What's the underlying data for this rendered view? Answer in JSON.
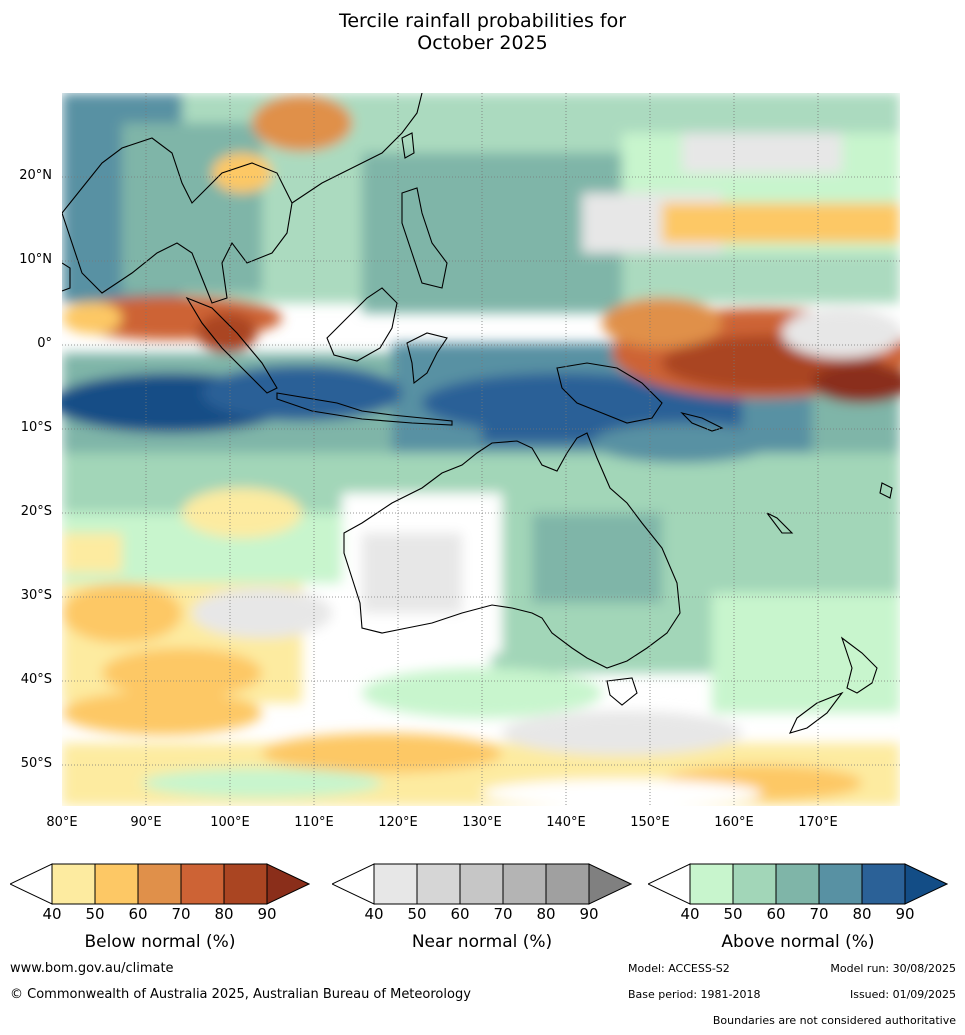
{
  "title": {
    "line1": "Tercile rainfall probabilities for",
    "line2": "October 2025"
  },
  "axes": {
    "lat_labels": [
      "20°N",
      "10°N",
      "0°",
      "10°S",
      "20°S",
      "30°S",
      "40°S",
      "50°S"
    ],
    "lon_labels": [
      "80°E",
      "90°E",
      "100°E",
      "110°E",
      "120°E",
      "130°E",
      "140°E",
      "150°E",
      "160°E",
      "170°E"
    ]
  },
  "colorbars": [
    {
      "title": "Below normal (%)",
      "ticks": [
        "40",
        "50",
        "60",
        "70",
        "80",
        "90"
      ],
      "colors": [
        "#ffffff",
        "#fdeba0",
        "#fdc865",
        "#e0904a",
        "#cd6335",
        "#aa4522",
        "#8a2e1a"
      ]
    },
    {
      "title": "Near normal (%)",
      "ticks": [
        "40",
        "50",
        "60",
        "70",
        "80",
        "90"
      ],
      "colors": [
        "#ffffff",
        "#e7e7e7",
        "#d6d6d6",
        "#c6c6c6",
        "#b4b4b4",
        "#a0a0a0",
        "#808080"
      ]
    },
    {
      "title": "Above normal (%)",
      "ticks": [
        "40",
        "50",
        "60",
        "70",
        "80",
        "90"
      ],
      "colors": [
        "#ffffff",
        "#c8f5cd",
        "#a2d6b8",
        "#7fb5a8",
        "#5891a3",
        "#2b6197",
        "#134d86"
      ]
    }
  ],
  "footer": {
    "website": "www.bom.gov.au/climate",
    "copyright": "© Commonwealth of Australia 2025, Australian Bureau of Meteorology",
    "model": "Model: ACCESS-S2",
    "model_run": "Model run: 30/08/2025",
    "base_period": "Base period: 1981-2018",
    "issued": "Issued: 01/09/2025",
    "disclaimer": "Boundaries are not considered authoritative"
  }
}
